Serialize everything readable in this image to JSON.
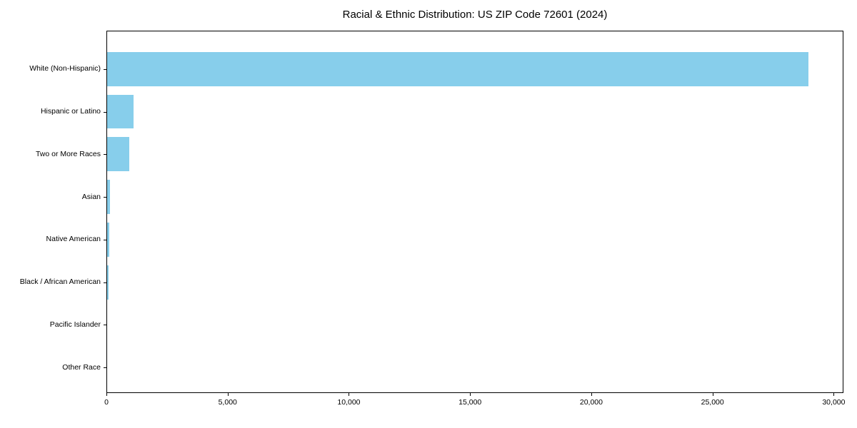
{
  "title": "Racial & Ethnic Distribution: US ZIP Code 72601 (2024)",
  "colors": {
    "bar": "#87CEEB",
    "axis": "#000000",
    "text": "#000000",
    "background": "#ffffff"
  },
  "chart_data": {
    "type": "bar",
    "orientation": "horizontal",
    "title": "Racial & Ethnic Distribution: US ZIP Code 72601 (2024)",
    "xlabel": "",
    "ylabel": "",
    "categories": [
      "White (Non-Hispanic)",
      "Hispanic or Latino",
      "Two or More Races",
      "Asian",
      "Native American",
      "Black / African American",
      "Pacific Islander",
      "Other Race"
    ],
    "values": [
      28940,
      1080,
      910,
      125,
      100,
      70,
      0,
      0
    ],
    "xlim": [
      0,
      30400
    ],
    "xticks": [
      0,
      5000,
      10000,
      15000,
      20000,
      25000,
      30000
    ],
    "xtick_labels": [
      "0",
      "5,000",
      "10,000",
      "15,000",
      "20,000",
      "25,000",
      "30,000"
    ],
    "grid": false,
    "legend": null,
    "bar_color": "#87CEEB"
  }
}
